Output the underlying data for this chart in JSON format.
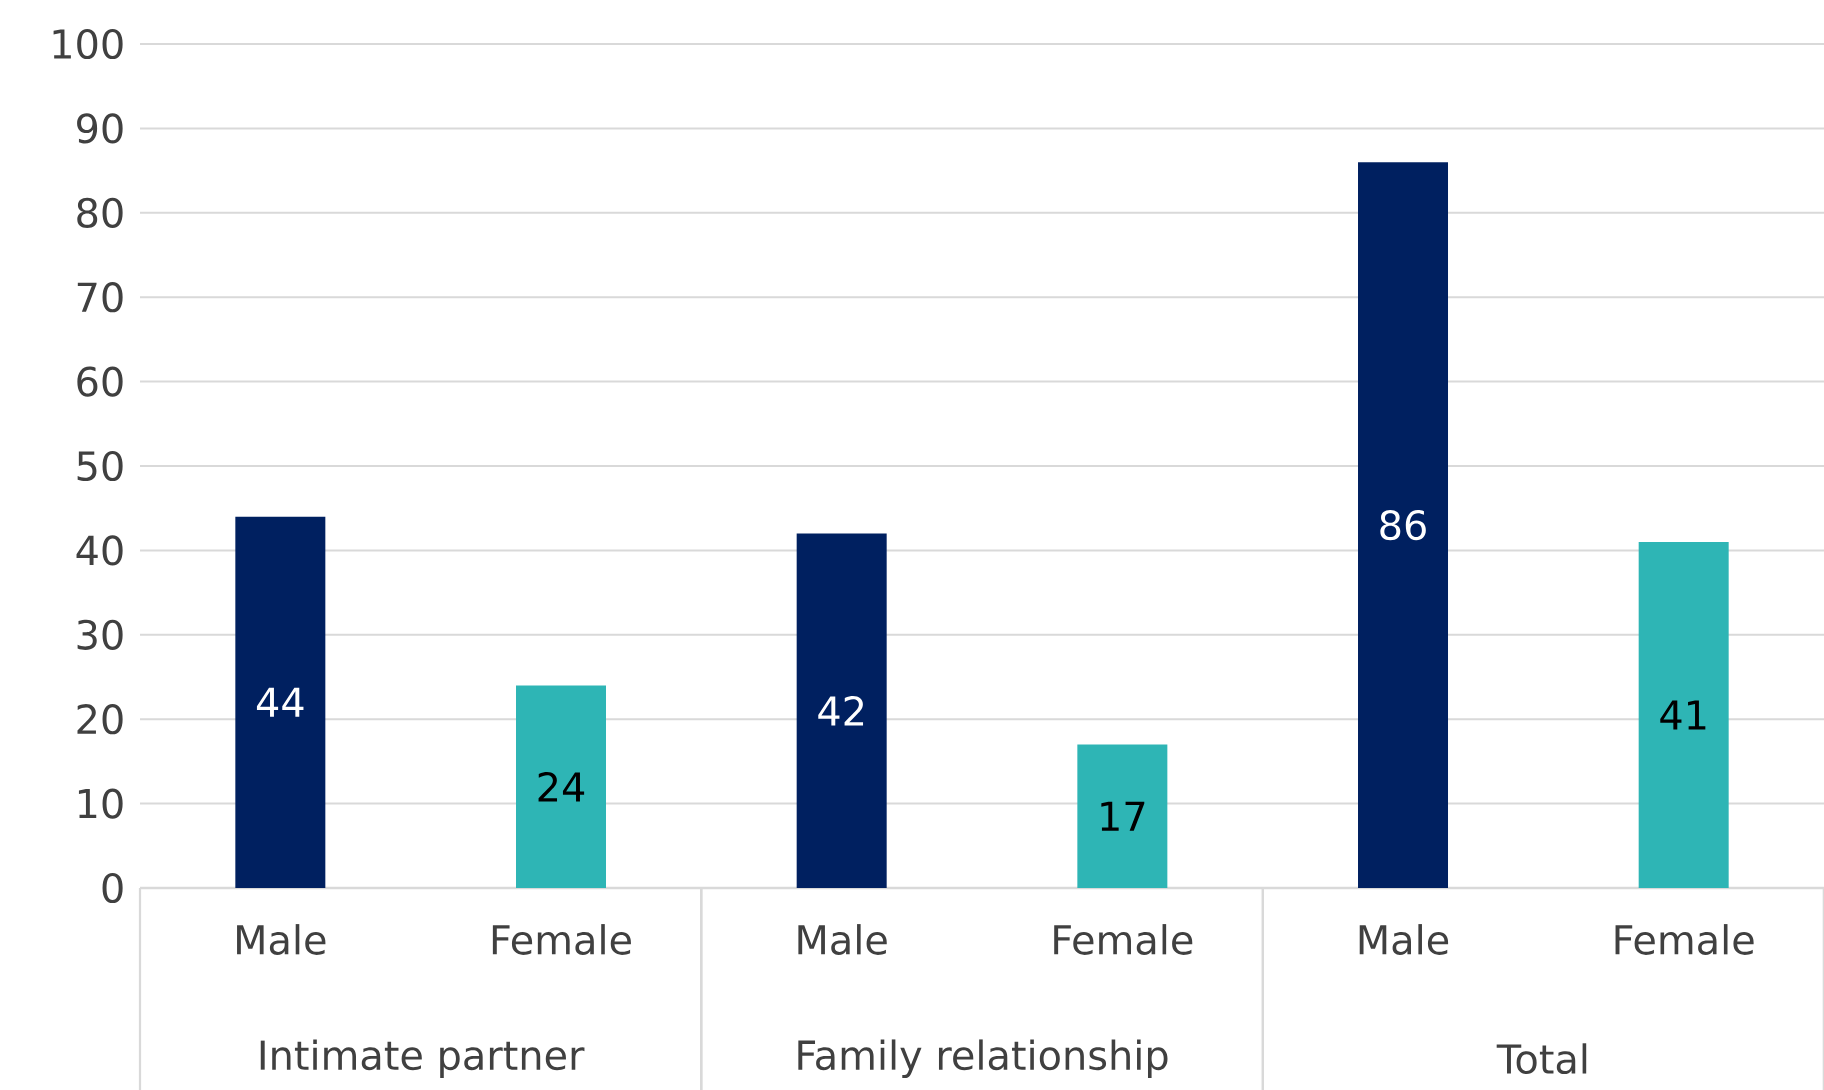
{
  "chart_data": {
    "type": "bar",
    "categories": [
      "Male",
      "Female",
      "Male",
      "Female",
      "Male",
      "Female"
    ],
    "values": [
      44,
      24,
      42,
      17,
      86,
      41
    ],
    "colors": [
      "#002060",
      "#2eb5b5",
      "#002060",
      "#2eb5b5",
      "#002060",
      "#2eb5b5"
    ],
    "ylim": [
      0,
      100
    ],
    "yticks": [
      0,
      10,
      20,
      30,
      40,
      50,
      60,
      70,
      80,
      90,
      100
    ],
    "grid": "y",
    "data_labels": true,
    "annotations": [
      "Intimate partner",
      "Family relationship",
      "Total"
    ]
  }
}
